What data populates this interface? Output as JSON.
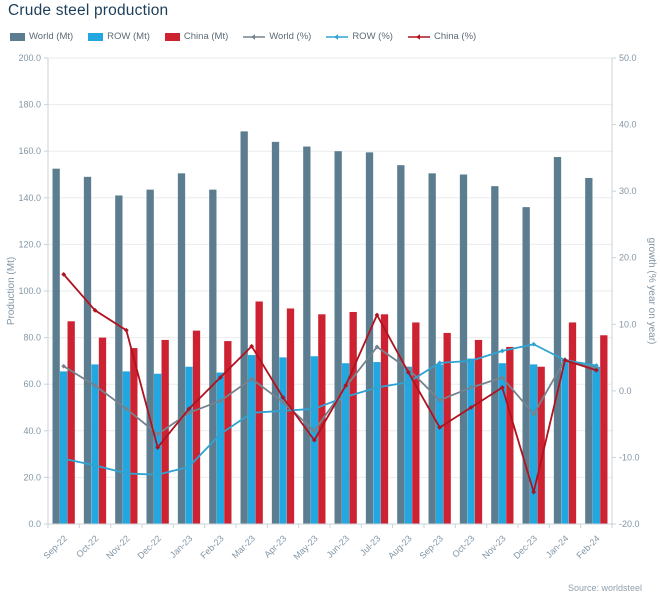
{
  "title": "Crude steel production",
  "source": "Source: worldsteel",
  "colors": {
    "world_bar": "#5c7d8f",
    "row_bar": "#22a7e0",
    "china_bar": "#cc2231",
    "world_line": "#75838e",
    "row_line": "#2fa3d2",
    "china_line": "#b0121f",
    "grid": "#e9ecee",
    "axis_line": "#c9d3da",
    "tick_text": "#8296a6",
    "title_text": "#1d3e59"
  },
  "chart_data": {
    "type": "combo (grouped bar + line)",
    "categories": [
      "Sep-22",
      "Oct-22",
      "Nov-22",
      "Dec-22",
      "Jan-23",
      "Feb-23",
      "Mar-23",
      "Apr-23",
      "May-23",
      "Jun-23",
      "Jul-23",
      "Aug-23",
      "Sep-23",
      "Oct-23",
      "Nov-23",
      "Dec-23",
      "Jan-24",
      "Feb-24"
    ],
    "bar_series": [
      {
        "name": "World (Mt)",
        "axis": "left",
        "color": "#5c7d8f",
        "values": [
          152.5,
          149.0,
          141.0,
          143.5,
          150.5,
          143.5,
          168.5,
          164.0,
          162.0,
          160.0,
          159.5,
          154.0,
          150.5,
          150.0,
          145.0,
          136.0,
          157.5,
          148.5
        ]
      },
      {
        "name": "ROW (Mt)",
        "axis": "left",
        "color": "#22a7e0",
        "values": [
          65.5,
          68.5,
          65.5,
          64.5,
          67.5,
          65.0,
          72.5,
          71.5,
          72.0,
          69.0,
          69.5,
          67.5,
          68.5,
          71.0,
          69.0,
          68.5,
          70.5,
          67.5
        ]
      },
      {
        "name": "China (Mt)",
        "axis": "left",
        "color": "#cc2231",
        "values": [
          87.0,
          80.0,
          75.5,
          79.0,
          83.0,
          78.5,
          95.5,
          92.5,
          90.0,
          91.0,
          90.0,
          86.5,
          82.0,
          79.0,
          76.0,
          67.5,
          86.5,
          81.0
        ]
      }
    ],
    "line_series": [
      {
        "name": "World (%)",
        "axis": "right",
        "color": "#75838e",
        "values": [
          3.7,
          0.8,
          -2.7,
          -6.5,
          -3.3,
          -1.5,
          1.8,
          -1.7,
          -6.0,
          0.6,
          6.6,
          3.3,
          -1.4,
          0.5,
          2.0,
          -3.5,
          4.7,
          3.5
        ]
      },
      {
        "name": "ROW (%)",
        "axis": "right",
        "color": "#2fa3d2",
        "values": [
          -10.2,
          -11.2,
          -12.4,
          -12.6,
          -11.4,
          -6.5,
          -3.3,
          -3.0,
          -2.7,
          -0.9,
          0.5,
          1.3,
          4.2,
          4.5,
          6.0,
          7.0,
          4.6,
          3.8
        ]
      },
      {
        "name": "China (%)",
        "axis": "right",
        "color": "#b0121f",
        "values": [
          17.5,
          12.1,
          9.1,
          -8.5,
          -2.7,
          2.0,
          6.7,
          -1.0,
          -7.4,
          0.8,
          11.4,
          2.8,
          -5.5,
          -2.5,
          0.5,
          -15.2,
          4.6,
          3.1
        ]
      }
    ],
    "left_axis": {
      "title": "Production (Mt)",
      "min": 0,
      "max": 200,
      "step": 20,
      "decimals": 1
    },
    "right_axis": {
      "title": "growth (% year on year)",
      "min": -20,
      "max": 50,
      "step": 10,
      "decimals": 1
    },
    "grid": true,
    "legend_position": "top"
  }
}
